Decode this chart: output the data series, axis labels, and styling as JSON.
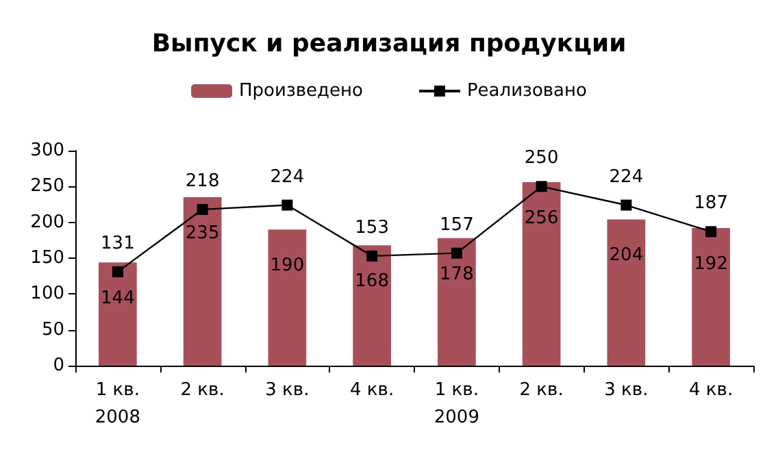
{
  "chart_data": {
    "type": "bar",
    "title": "Выпуск и реализация продукции",
    "categories": [
      "1 кв.\n2008",
      "2 кв.",
      "3 кв.",
      "4 кв.",
      "1 кв.\n2009",
      "2 кв.",
      "3 кв.",
      "4 кв."
    ],
    "series": [
      {
        "name": "Произведено",
        "color": "#a8505a",
        "values": [
          144,
          235,
          190,
          168,
          178,
          256,
          204,
          192
        ]
      },
      {
        "name": "Реализовано",
        "type": "line",
        "color": "#000000",
        "marker": "square",
        "values": [
          131,
          218,
          224,
          153,
          157,
          250,
          224,
          187
        ]
      }
    ],
    "ylim": [
      0,
      300
    ],
    "yticks": [
      0,
      50,
      100,
      150,
      200,
      250,
      300
    ],
    "grid": false,
    "legend": "top",
    "data_labels": true
  }
}
